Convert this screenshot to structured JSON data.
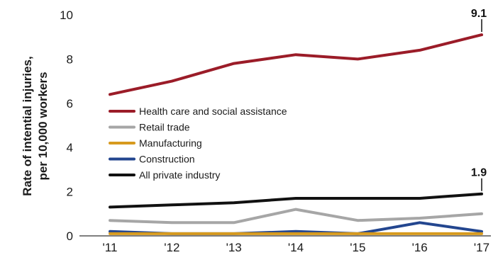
{
  "chart_data": {
    "type": "line",
    "ylabel": "Rate of intential injuries, per 10,000 workers",
    "ylabel_lines": [
      "Rate of intential injuries,",
      "per 10,000 workers"
    ],
    "xlabel": "",
    "categories": [
      "'11",
      "'12",
      "'13",
      "'14",
      "'15",
      "'16",
      "'17"
    ],
    "ylim": [
      0,
      10
    ],
    "yticks": [
      0,
      2,
      4,
      6,
      8,
      10
    ],
    "grid": false,
    "legend_position": "middle-left",
    "series": [
      {
        "name": "Health care and social assistance",
        "color": "#9b1c28",
        "values": [
          6.4,
          7.0,
          7.8,
          8.2,
          8.0,
          8.4,
          9.1
        ]
      },
      {
        "name": "Retail trade",
        "color": "#a6a6a6",
        "values": [
          0.7,
          0.6,
          0.6,
          1.2,
          0.7,
          0.8,
          1.0
        ]
      },
      {
        "name": "Manufacturing",
        "color": "#d79a1e",
        "values": [
          0.1,
          0.1,
          0.1,
          0.1,
          0.1,
          0.1,
          0.1
        ]
      },
      {
        "name": "Construction",
        "color": "#23468f",
        "values": [
          0.2,
          0.1,
          0.1,
          0.2,
          0.1,
          0.6,
          0.2
        ]
      },
      {
        "name": "All private industry",
        "color": "#111111",
        "values": [
          1.3,
          1.4,
          1.5,
          1.7,
          1.7,
          1.7,
          1.9
        ]
      }
    ],
    "annotations": [
      {
        "text": "9.1",
        "series": "Health care and social assistance",
        "category": "'17"
      },
      {
        "text": "1.9",
        "series": "All private industry",
        "category": "'17"
      }
    ]
  }
}
